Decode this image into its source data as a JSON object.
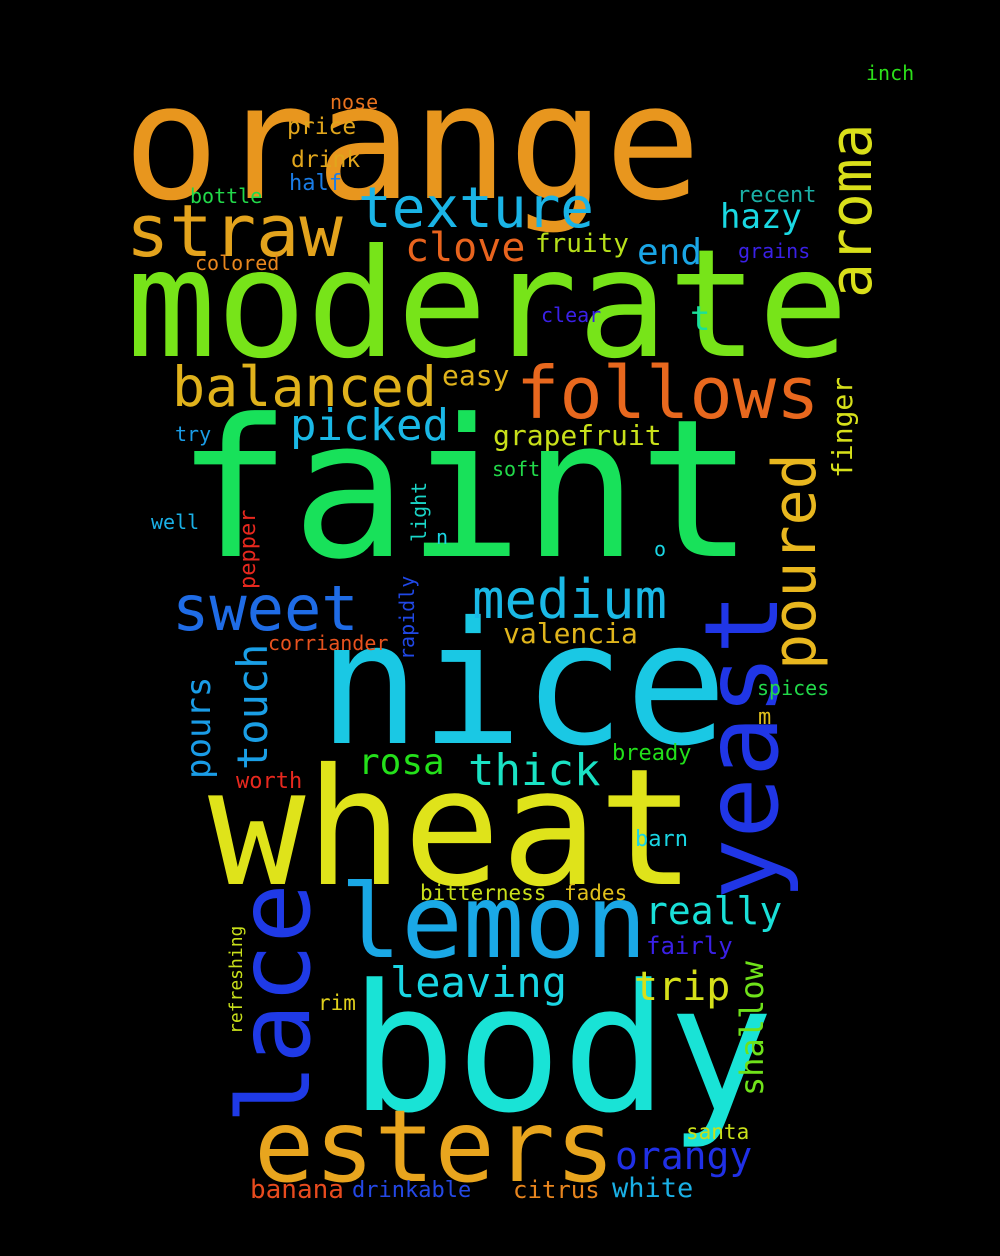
{
  "words": [
    {
      "text": "orange",
      "color": "#e8961e"
    },
    {
      "text": "moderate",
      "color": "#77e419"
    },
    {
      "text": "faint",
      "color": "#18e15a"
    },
    {
      "text": "nice",
      "color": "#1ac8e4"
    },
    {
      "text": "wheat",
      "color": "#dfe31a"
    },
    {
      "text": "body",
      "color": "#19e3d6"
    },
    {
      "text": "lemon",
      "color": "#1aa8e6"
    },
    {
      "text": "esters",
      "color": "#e8a51e"
    },
    {
      "text": "yeast",
      "color": "#2036e6"
    },
    {
      "text": "lace",
      "color": "#1f3ae6"
    },
    {
      "text": "follows",
      "color": "#e8681e"
    },
    {
      "text": "straw",
      "color": "#e3a31d"
    },
    {
      "text": "texture",
      "color": "#1ab4e6"
    },
    {
      "text": "aroma",
      "color": "#d9df1a"
    },
    {
      "text": "poured",
      "color": "#e8b71f"
    },
    {
      "text": "balanced",
      "color": "#e0b21c"
    },
    {
      "text": "sweet",
      "color": "#1f6ce6"
    },
    {
      "text": "medium",
      "color": "#1ab9e6"
    },
    {
      "text": "picked",
      "color": "#1ab8e6"
    },
    {
      "text": "clove",
      "color": "#e8641e"
    },
    {
      "text": "hazy",
      "color": "#1ad9e3"
    },
    {
      "text": "end",
      "color": "#1aa6e6"
    },
    {
      "text": "really",
      "color": "#1ae0d8"
    },
    {
      "text": "thick",
      "color": "#1ae2c4"
    },
    {
      "text": "leaving",
      "color": "#1ad6e4"
    },
    {
      "text": "trip",
      "color": "#d6e01a"
    },
    {
      "text": "touch",
      "color": "#1a9fe6"
    },
    {
      "text": "pours",
      "color": "#1a9ce6"
    },
    {
      "text": "rosa",
      "color": "#24e01a"
    },
    {
      "text": "orangy",
      "color": "#2030e6"
    },
    {
      "text": "shallow",
      "color": "#6fe21a"
    },
    {
      "text": "grapefruit",
      "color": "#c9e01a"
    },
    {
      "text": "valencia",
      "color": "#e0b51c"
    },
    {
      "text": "fruity",
      "color": "#b7e01a"
    },
    {
      "text": "finger",
      "color": "#d6e01a"
    },
    {
      "text": "easy",
      "color": "#e0b31c"
    },
    {
      "text": "t",
      "color": "#1ae09a"
    },
    {
      "text": "banana",
      "color": "#e84b1e"
    },
    {
      "text": "drinkable",
      "color": "#2448e6"
    },
    {
      "text": "citrus",
      "color": "#e8851e"
    },
    {
      "text": "white",
      "color": "#1ab0e6"
    },
    {
      "text": "santa",
      "color": "#c9e01a"
    },
    {
      "text": "nose",
      "color": "#e8721e"
    },
    {
      "text": "price",
      "color": "#e0a51c"
    },
    {
      "text": "drink",
      "color": "#e0a51c"
    },
    {
      "text": "half",
      "color": "#1a7ce6"
    },
    {
      "text": "bottle",
      "color": "#22d94a"
    },
    {
      "text": "colored",
      "color": "#e8871e"
    },
    {
      "text": "inch",
      "color": "#2ce01a"
    },
    {
      "text": "recent",
      "color": "#1ab0a6"
    },
    {
      "text": "grains",
      "color": "#3a20e6"
    },
    {
      "text": "clear",
      "color": "#3a20e6"
    },
    {
      "text": "try",
      "color": "#1a9ce6"
    },
    {
      "text": "soft",
      "color": "#22d94a"
    },
    {
      "text": "well",
      "color": "#1ab0e6"
    },
    {
      "text": "pepper",
      "color": "#e8281e"
    },
    {
      "text": "light",
      "color": "#1ad6c8"
    },
    {
      "text": "n",
      "color": "#1ad6e4"
    },
    {
      "text": "o",
      "color": "#1ad6e4"
    },
    {
      "text": "rapidly",
      "color": "#2048e6"
    },
    {
      "text": "corriander",
      "color": "#e8521e"
    },
    {
      "text": "spices",
      "color": "#22d94a"
    },
    {
      "text": "m",
      "color": "#e0c01c"
    },
    {
      "text": "bready",
      "color": "#22e01a"
    },
    {
      "text": "worth",
      "color": "#e8281e"
    },
    {
      "text": "barn",
      "color": "#1ad6e4"
    },
    {
      "text": "bitterness",
      "color": "#c9e01a"
    },
    {
      "text": "fades",
      "color": "#e0c01c"
    },
    {
      "text": "fairly",
      "color": "#3a20e6"
    },
    {
      "text": "refreshing",
      "color": "#c9e01a"
    },
    {
      "text": "rim",
      "color": "#e0d01c"
    }
  ]
}
